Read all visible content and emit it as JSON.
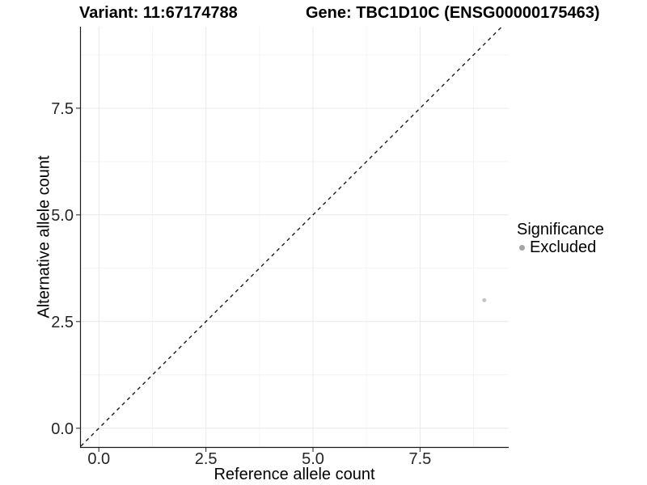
{
  "header": {
    "variant_title": "Variant: 11:67174788",
    "gene_title": "Gene: TBC1D10C (ENSG00000175463)"
  },
  "chart_data": {
    "type": "scatter",
    "xlabel": "Reference allele count",
    "ylabel": "Alternative allele count",
    "xlim": [
      -0.42,
      9.57
    ],
    "ylim": [
      -0.44,
      9.41
    ],
    "x_ticks": [
      0.0,
      2.5,
      5.0,
      7.5
    ],
    "y_ticks": [
      0.0,
      2.5,
      5.0,
      7.5
    ],
    "grid": {
      "major": true,
      "minor": true,
      "major_color": "#e9e9e9",
      "minor_color": "#f4f4f4"
    },
    "reference_line": {
      "type": "identity",
      "slope": 1,
      "intercept": 0,
      "style": "dashed",
      "color": "#1a1a1a"
    },
    "series": [
      {
        "name": "Excluded",
        "color": "#c4c4c4",
        "point_radius": 2.5,
        "points": [
          {
            "x": 9,
            "y": 3
          }
        ]
      }
    ],
    "legend": {
      "position": "right",
      "title": "Significance",
      "items": [
        {
          "label": "Excluded",
          "color": "#a6a6a6"
        }
      ]
    },
    "axis_color": "#1a1a1a",
    "tick_color": "#333333"
  }
}
